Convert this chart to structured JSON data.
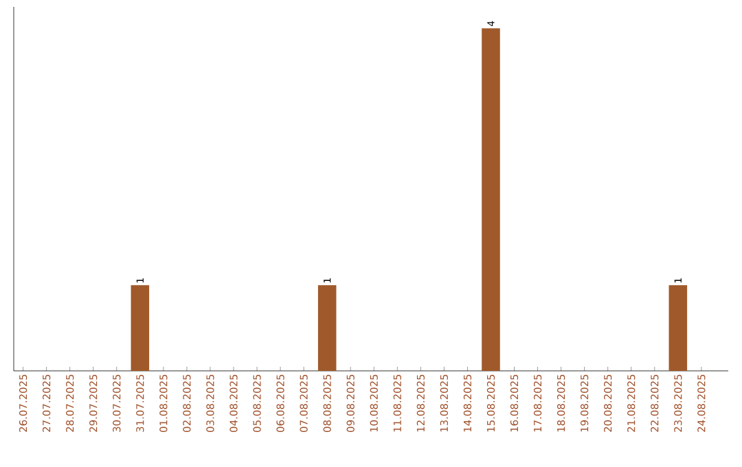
{
  "chart_data": {
    "type": "bar",
    "categories": [
      "26.07.2025",
      "27.07.2025",
      "28.07.2025",
      "29.07.2025",
      "30.07.2025",
      "31.07.2025",
      "01.08.2025",
      "02.08.2025",
      "03.08.2025",
      "04.08.2025",
      "05.08.2025",
      "06.08.2025",
      "07.08.2025",
      "08.08.2025",
      "09.08.2025",
      "10.08.2025",
      "11.08.2025",
      "12.08.2025",
      "13.08.2025",
      "14.08.2025",
      "15.08.2025",
      "16.08.2025",
      "17.08.2025",
      "18.08.2025",
      "19.08.2025",
      "20.08.2025",
      "21.08.2025",
      "22.08.2025",
      "23.08.2025",
      "24.08.2025"
    ],
    "values": [
      0,
      0,
      0,
      0,
      0,
      1,
      0,
      0,
      0,
      0,
      0,
      0,
      0,
      1,
      0,
      0,
      0,
      0,
      0,
      0,
      4,
      0,
      0,
      0,
      0,
      0,
      0,
      0,
      1,
      0
    ],
    "value_labels": [
      null,
      null,
      null,
      null,
      null,
      "1",
      null,
      null,
      null,
      null,
      null,
      null,
      null,
      "1",
      null,
      null,
      null,
      null,
      null,
      null,
      "4",
      null,
      null,
      null,
      null,
      null,
      null,
      null,
      "1",
      null
    ],
    "color": "#a0592a",
    "ylim": [
      0,
      4.25
    ]
  }
}
